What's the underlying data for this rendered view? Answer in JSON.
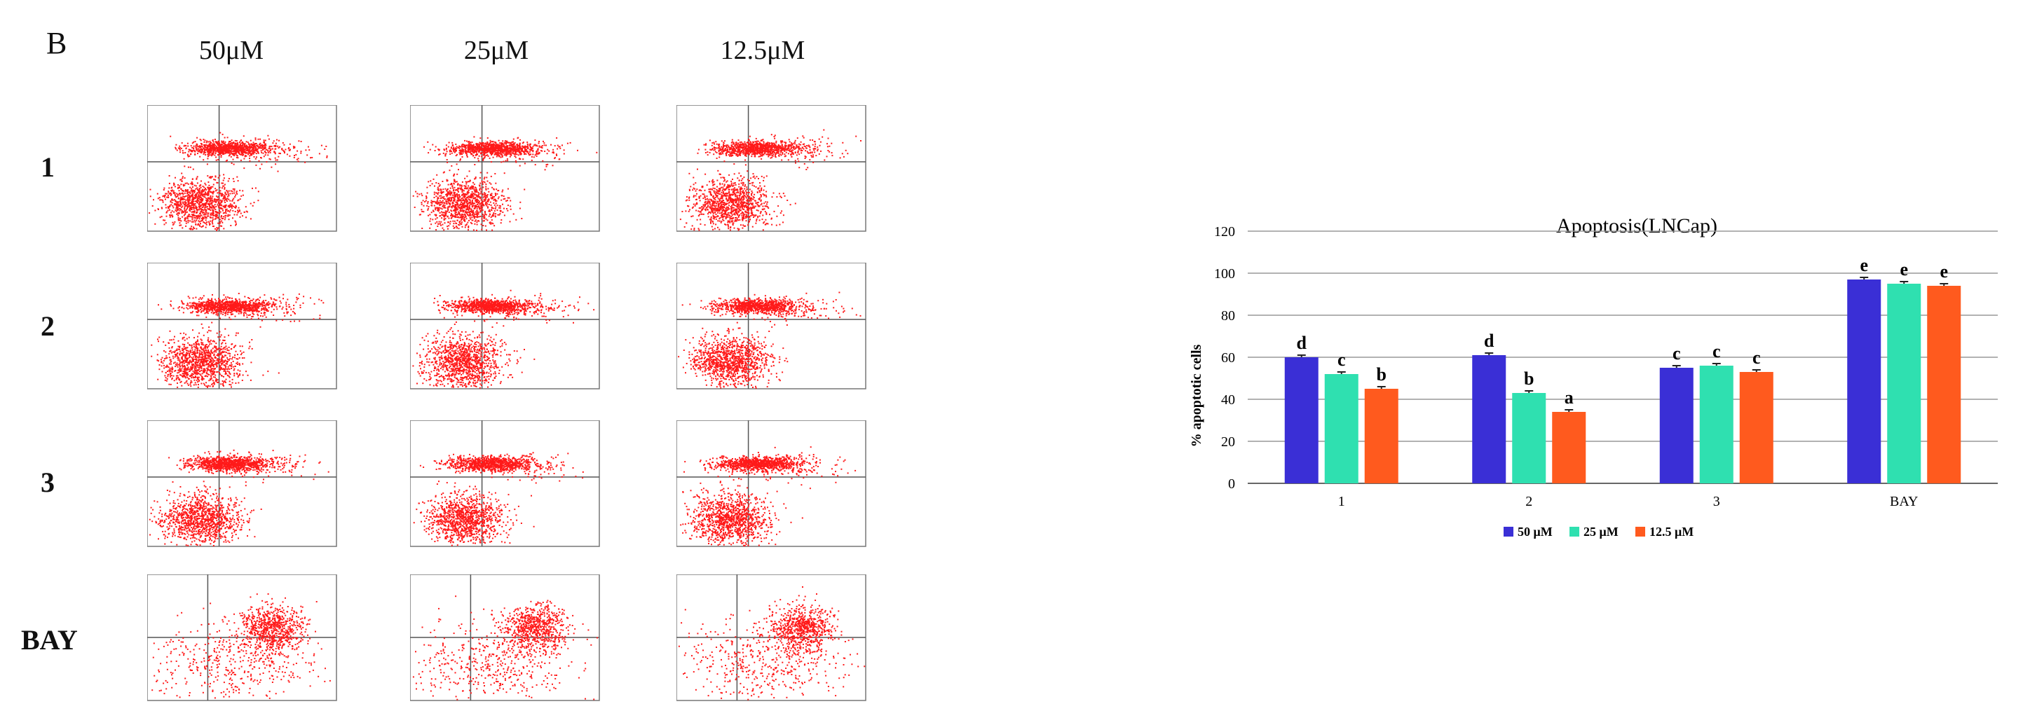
{
  "panel_label": "B",
  "flow_grid": {
    "columns": [
      "50μM",
      "25μM",
      "12.5μM"
    ],
    "rows": [
      "1",
      "2",
      "3",
      "BAY"
    ]
  },
  "colors": {
    "series_50": "#3a2fd6",
    "series_25": "#2fe0b0",
    "series_12_5": "#ff5a1e",
    "flow_dots": "#ff1a1a"
  },
  "chart_data": {
    "type": "bar",
    "title": "Apoptosis(LNCap)",
    "ylabel": "% apoptotic cells",
    "xlabel": "",
    "ylim": [
      0,
      120
    ],
    "yticks": [
      0,
      20,
      40,
      60,
      80,
      100,
      120
    ],
    "grid": true,
    "legend_position": "bottom",
    "categories": [
      "1",
      "2",
      "3",
      "BAY"
    ],
    "series": [
      {
        "name": "50 μM",
        "values": [
          60,
          61,
          55,
          97
        ],
        "letters": [
          "d",
          "d",
          "c",
          "e"
        ]
      },
      {
        "name": "25 μM",
        "values": [
          52,
          43,
          56,
          95
        ],
        "letters": [
          "c",
          "b",
          "c",
          "e"
        ]
      },
      {
        "name": "12.5 μM",
        "values": [
          45,
          34,
          53,
          94
        ],
        "letters": [
          "b",
          "a",
          "c",
          "e"
        ]
      }
    ]
  }
}
